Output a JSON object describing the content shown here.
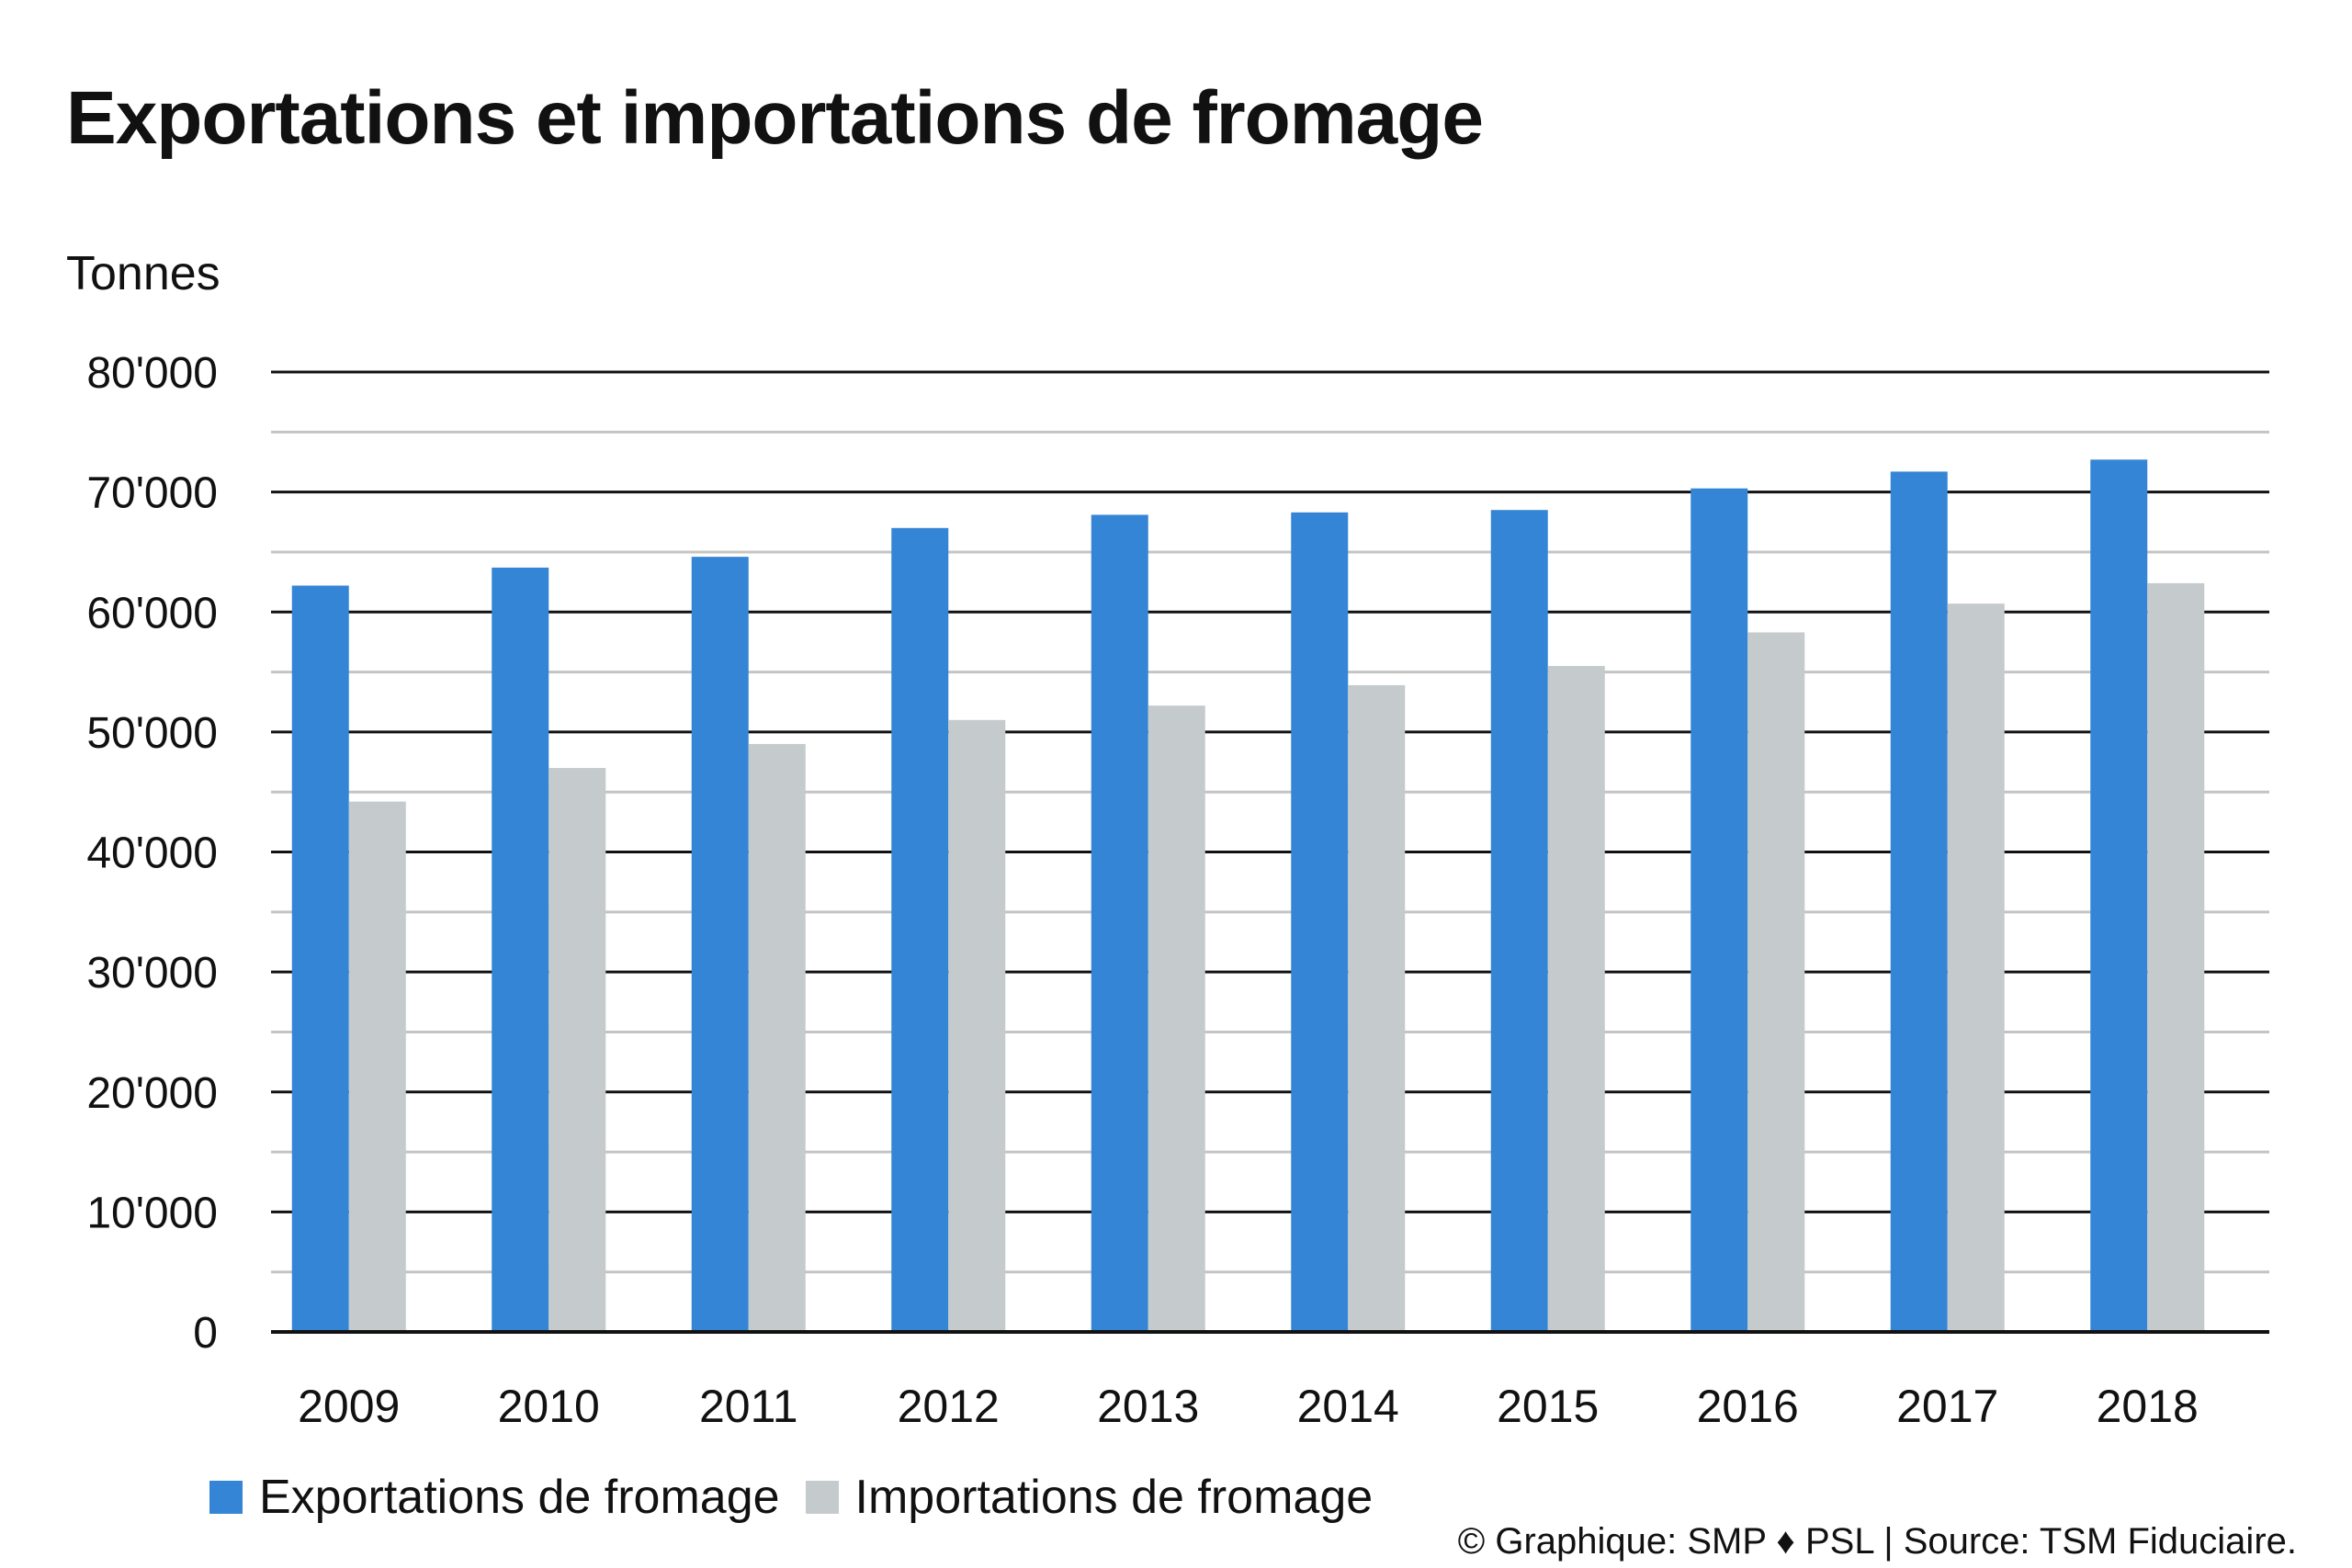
{
  "title": "Exportations et importations de fromage",
  "unit_label": "Tonnes",
  "credit": "© Graphique: SMP ♦ PSL | Source: TSM Fiduciaire.",
  "colors": {
    "exports": "#3585d6",
    "imports": "#c5cacd",
    "major_grid": "#111111",
    "minor_grid": "#c4c4c4"
  },
  "chart_data": {
    "type": "bar",
    "title": "Exportations et importations de fromage",
    "ylabel": "Tonnes",
    "xlabel": "",
    "categories": [
      "2009",
      "2010",
      "2011",
      "2012",
      "2013",
      "2014",
      "2015",
      "2016",
      "2017",
      "2018"
    ],
    "series": [
      {
        "name": "Exportations de fromage",
        "values": [
          62200,
          63700,
          64600,
          67000,
          68100,
          68300,
          68500,
          70300,
          71700,
          72700
        ]
      },
      {
        "name": "Importations de fromage",
        "values": [
          44200,
          47000,
          49000,
          51000,
          52200,
          53900,
          55500,
          58300,
          60700,
          62400
        ]
      }
    ],
    "ylim": [
      0,
      80000
    ],
    "major_tick_step": 10000,
    "minor_tick_step": 5000,
    "y_tick_labels": [
      "0",
      "10'000",
      "20'000",
      "30'000",
      "40'000",
      "50'000",
      "60'000",
      "70'000",
      "80'000"
    ],
    "grid": true,
    "legend_position": "bottom-left"
  }
}
